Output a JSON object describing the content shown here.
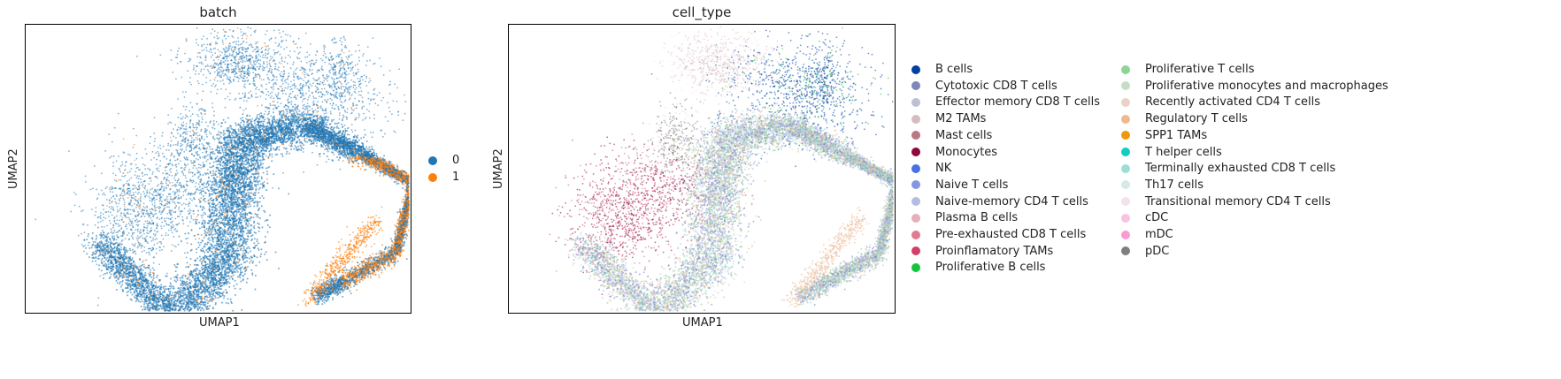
{
  "chart_data": [
    {
      "type": "scatter",
      "title": "batch",
      "xlabel": "UMAP1",
      "ylabel": "UMAP2",
      "legend_placement": "right",
      "series": [
        {
          "name": "0",
          "color": "#1f77b4"
        },
        {
          "name": "1",
          "color": "#ff7f0e"
        }
      ]
    },
    {
      "type": "scatter",
      "title": "cell_type",
      "xlabel": "UMAP1",
      "ylabel": "UMAP2",
      "legend_placement": "right",
      "series": [
        {
          "name": "B cells",
          "color": "#023fa5"
        },
        {
          "name": "Cytotoxic CD8 T cells",
          "color": "#7d87b9"
        },
        {
          "name": "Effector memory CD8 T cells",
          "color": "#bec1d4"
        },
        {
          "name": "M2 TAMs",
          "color": "#d6bcc0"
        },
        {
          "name": "Mast cells",
          "color": "#bb7784"
        },
        {
          "name": "Monocytes",
          "color": "#8e063b"
        },
        {
          "name": "NK",
          "color": "#4a6fe3"
        },
        {
          "name": "Naive T cells",
          "color": "#8595e1"
        },
        {
          "name": "Naive-memory CD4 T cells",
          "color": "#b5bbe3"
        },
        {
          "name": "Plasma B cells",
          "color": "#e6afb9"
        },
        {
          "name": "Pre-exhausted CD8 T cells",
          "color": "#e07b91"
        },
        {
          "name": "Proinflamatory TAMs",
          "color": "#d33f6a"
        },
        {
          "name": "Proliferative B cells",
          "color": "#11c638"
        },
        {
          "name": "Proliferative T cells",
          "color": "#8dd593"
        },
        {
          "name": "Proliferative monocytes and macrophages",
          "color": "#c6dec7"
        },
        {
          "name": "Recently activated CD4 T cells",
          "color": "#ead3c6"
        },
        {
          "name": "Regulatory T cells",
          "color": "#f0b98d"
        },
        {
          "name": "SPP1 TAMs",
          "color": "#ef9708"
        },
        {
          "name": "T helper cells",
          "color": "#0fcfc0"
        },
        {
          "name": "Terminally exhausted CD8 T cells",
          "color": "#9cded6"
        },
        {
          "name": "Th17 cells",
          "color": "#d5eae7"
        },
        {
          "name": "Transitional memory CD4 T cells",
          "color": "#f3e1eb"
        },
        {
          "name": "cDC",
          "color": "#f6c4e1"
        },
        {
          "name": "mDC",
          "color": "#f79cd4"
        },
        {
          "name": "pDC",
          "color": "#7f7f7f"
        }
      ]
    }
  ]
}
